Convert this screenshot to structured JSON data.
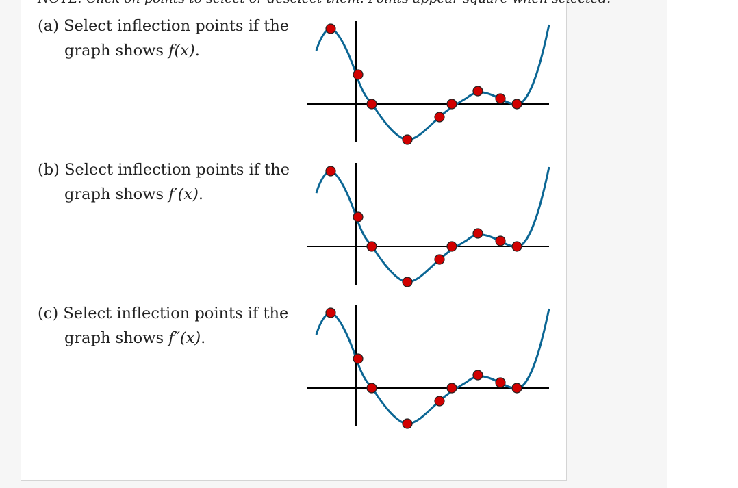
{
  "note": "NOTE: Click on points to select or deselect them. Points appear square when selected.",
  "questions": [
    {
      "id": "a",
      "prefix": "(a)",
      "text": "Select inflection points if the",
      "line2_text": "graph shows",
      "func": "f(x)",
      "suffix": "."
    },
    {
      "id": "b",
      "prefix": "(b)",
      "text": "Select inflection points if the",
      "line2_text": "graph shows",
      "func": "f′(x)",
      "suffix": "."
    },
    {
      "id": "c",
      "prefix": "(c)",
      "text": "Select inflection points if the",
      "line2_text": "graph shows",
      "func": "f″(x)",
      "suffix": "."
    }
  ],
  "colors": {
    "curve": "#0b6694",
    "point_fill": "#d10000",
    "point_stroke": "#222222",
    "axis": "#000000"
  },
  "points_per_graph": 10
}
